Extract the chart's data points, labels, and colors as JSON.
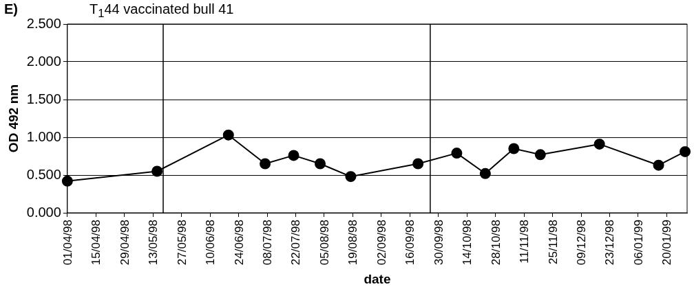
{
  "chart_data": {
    "type": "line",
    "title": "T$_{1}$44 vaccinated bull 41",
    "annotations": [
      "E)"
    ],
    "xlabel": "date",
    "ylabel": "OD 492 nm",
    "x": [
      "1998-04-01",
      "1998-05-15",
      "1998-06-19",
      "1998-07-07",
      "1998-07-21",
      "1998-08-03",
      "1998-08-18",
      "1998-09-20",
      "1998-10-09",
      "1998-10-23",
      "1998-11-06",
      "1998-11-19",
      "1998-12-18",
      "1999-01-16",
      "1999-01-29"
    ],
    "series": [
      {
        "color": "#000000",
        "values": [
          0.42,
          0.55,
          1.03,
          0.65,
          0.76,
          0.65,
          0.48,
          0.65,
          0.79,
          0.52,
          0.85,
          0.77,
          0.91,
          0.63,
          0.81
        ]
      }
    ],
    "xlim": [
      "1998-04-01",
      "1999-01-30"
    ],
    "xticks": [
      {
        "value": "1998-04-01",
        "label": "01/04/98"
      },
      {
        "value": "1998-04-15",
        "label": "15/04/98"
      },
      {
        "value": "1998-04-29",
        "label": "29/04/98"
      },
      {
        "value": "1998-05-13",
        "label": "13/05/98"
      },
      {
        "value": "1998-05-27",
        "label": "27/05/98"
      },
      {
        "value": "1998-06-10",
        "label": "10/06/98"
      },
      {
        "value": "1998-06-24",
        "label": "24/06/98"
      },
      {
        "value": "1998-07-08",
        "label": "08/07/98"
      },
      {
        "value": "1998-07-22",
        "label": "22/07/98"
      },
      {
        "value": "1998-08-05",
        "label": "05/08/98"
      },
      {
        "value": "1998-08-19",
        "label": "19/08/98"
      },
      {
        "value": "1998-09-02",
        "label": "02/09/98"
      },
      {
        "value": "1998-09-16",
        "label": "16/09/98"
      },
      {
        "value": "1998-09-30",
        "label": "30/09/98"
      },
      {
        "value": "1998-10-14",
        "label": "14/10/98"
      },
      {
        "value": "1998-10-28",
        "label": "28/10/98"
      },
      {
        "value": "1998-11-11",
        "label": "11/11/98"
      },
      {
        "value": "1998-11-25",
        "label": "25/11/98"
      },
      {
        "value": "1998-12-09",
        "label": "09/12/98"
      },
      {
        "value": "1998-12-23",
        "label": "23/12/98"
      },
      {
        "value": "1999-01-06",
        "label": "06/01/99"
      },
      {
        "value": "1999-01-20",
        "label": "20/01/99"
      }
    ],
    "ylim": [
      0,
      2.5
    ],
    "yticks": [
      {
        "value": 0,
        "label": "0.000"
      },
      {
        "value": 0.5,
        "label": "0.500"
      },
      {
        "value": 1,
        "label": "1.000"
      },
      {
        "value": 1.5,
        "label": "1.500"
      },
      {
        "value": 2,
        "label": "2.000"
      },
      {
        "value": 2.5,
        "label": "2.500"
      }
    ],
    "ref_lines": [
      {
        "axis": "x",
        "value": "1998-05-18",
        "color": "#000000"
      },
      {
        "axis": "x",
        "value": "1998-09-26",
        "color": "#000000"
      }
    ],
    "grid": "y",
    "legend": false,
    "marker": "circle",
    "line_style": "solid"
  }
}
